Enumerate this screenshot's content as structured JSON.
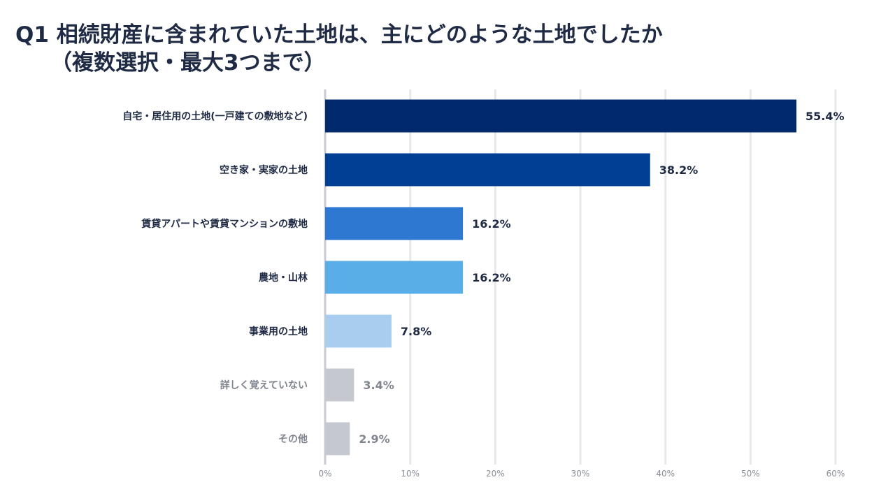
{
  "title": {
    "line1": "Q1  相続財産に含まれていた土地は、主にどのような土地でしたか",
    "line2": "（複数選択・最大3つまで）"
  },
  "chart_data": {
    "type": "bar",
    "orientation": "horizontal",
    "categories": [
      "自宅・居住用の土地(一戸建ての敷地など)",
      "空き家・実家の土地",
      "賃貸アパートや賃貸マンションの敷地",
      "農地・山林",
      "事業用の土地",
      "詳しく覚えていない",
      "その他"
    ],
    "values": [
      55.4,
      38.2,
      16.2,
      16.2,
      7.8,
      3.4,
      2.9
    ],
    "value_labels": [
      "55.4%",
      "38.2%",
      "16.2%",
      "16.2%",
      "7.8%",
      "3.4%",
      "2.9%"
    ],
    "bar_colors": [
      "#002a6b",
      "#003f94",
      "#2f78d1",
      "#5aaee8",
      "#a9cdef",
      "#c5c9cf",
      "#c5c9cf"
    ],
    "label_colors": [
      "#1f2a44",
      "#1f2a44",
      "#1f2a44",
      "#1f2a44",
      "#1f2a44",
      "#808590",
      "#808590"
    ],
    "xlim": [
      0,
      60
    ],
    "xticks": [
      0,
      10,
      20,
      30,
      40,
      50,
      60
    ],
    "xtick_labels": [
      "0%",
      "10%",
      "20%",
      "30%",
      "40%",
      "50%",
      "60%"
    ],
    "grid": true,
    "legend": false
  }
}
